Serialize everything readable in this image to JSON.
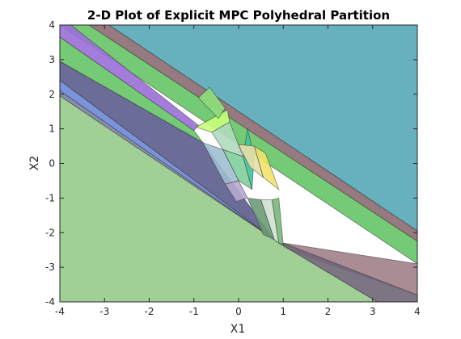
{
  "chart_data": {
    "type": "area",
    "title": "2-D Plot of Explicit MPC Polyhedral Partition",
    "xlabel": "X1",
    "ylabel": "X2",
    "xlim": [
      -4,
      4
    ],
    "ylim": [
      -4,
      4
    ],
    "xticks": [
      -4,
      -3,
      -2,
      -1,
      0,
      1,
      2,
      3,
      4
    ],
    "yticks": [
      -4,
      -3,
      -2,
      -1,
      0,
      1,
      2,
      3,
      4
    ],
    "grid": false,
    "legend": "none",
    "regions": [
      {
        "color": "#56a8b8",
        "vertices": [
          [
            -2.9,
            4
          ],
          [
            4,
            4
          ],
          [
            4,
            -1.95
          ],
          [
            -2.9,
            4
          ]
        ]
      },
      {
        "color": "#8c6a72",
        "vertices": [
          [
            -3.35,
            4
          ],
          [
            -2.9,
            4
          ],
          [
            4,
            -1.95
          ],
          [
            4,
            -2.25
          ]
        ]
      },
      {
        "color": "#66c466",
        "vertices": [
          [
            -4,
            4
          ],
          [
            -3.35,
            4
          ],
          [
            4,
            -2.25
          ],
          [
            4,
            -2.9
          ]
        ]
      },
      {
        "color": "#a07f88",
        "vertices": [
          [
            1,
            -2.3
          ],
          [
            4,
            -2.9
          ],
          [
            4,
            -3.8
          ],
          [
            1,
            -2.45
          ]
        ]
      },
      {
        "color": "#6f6577",
        "vertices": [
          [
            0.9,
            -2.3
          ],
          [
            1,
            -2.3
          ],
          [
            4,
            -3.8
          ],
          [
            4,
            -4
          ],
          [
            3.1,
            -4
          ]
        ]
      },
      {
        "color": "#9a6fd8",
        "vertices": [
          [
            -4,
            4
          ],
          [
            -3.75,
            4
          ],
          [
            -0.9,
            1.1
          ],
          [
            -1,
            0.95
          ],
          [
            -4,
            3.65
          ]
        ]
      },
      {
        "color": "#66c466",
        "vertices": [
          [
            -4,
            3.65
          ],
          [
            -1,
            0.95
          ],
          [
            -0.8,
            0.6
          ],
          [
            -4,
            2.95
          ]
        ]
      },
      {
        "color": "#5c5c8e",
        "vertices": [
          [
            -4,
            2.95
          ],
          [
            -0.8,
            0.6
          ],
          [
            0.8,
            -2.2
          ],
          [
            -4,
            2.4
          ]
        ]
      },
      {
        "color": "#6b88d8",
        "vertices": [
          [
            -4,
            2.4
          ],
          [
            0.8,
            -2.2
          ],
          [
            -4,
            2.1
          ]
        ]
      },
      {
        "color": "#7a82a4",
        "vertices": [
          [
            -4,
            2.1
          ],
          [
            0.8,
            -2.2
          ],
          [
            -4,
            1.95
          ]
        ]
      },
      {
        "color": "#96cb8b",
        "vertices": [
          [
            -4,
            1.95
          ],
          [
            0.8,
            -2.2
          ],
          [
            0.9,
            -2.3
          ],
          [
            3.1,
            -4
          ],
          [
            -4,
            -4
          ]
        ]
      },
      {
        "color": "#c8ff7a",
        "vertices": [
          [
            -0.95,
            1.05
          ],
          [
            -0.25,
            1.55
          ],
          [
            -0.2,
            1.2
          ],
          [
            -0.6,
            0.9
          ]
        ]
      },
      {
        "color": "#8ee07a",
        "vertices": [
          [
            -0.65,
            2.2
          ],
          [
            -0.3,
            1.6
          ],
          [
            -0.45,
            1.3
          ],
          [
            -0.9,
            1.9
          ]
        ]
      },
      {
        "color": "#b0dcbc",
        "vertices": [
          [
            -0.6,
            0.9
          ],
          [
            -0.2,
            1.2
          ],
          [
            0.1,
            0.2
          ],
          [
            -0.35,
            0.4
          ]
        ]
      },
      {
        "color": "#3ec49a",
        "vertices": [
          [
            0.2,
            1.0
          ],
          [
            0.35,
            0.2
          ],
          [
            0.3,
            -0.75
          ],
          [
            0.1,
            0.2
          ]
        ]
      },
      {
        "color": "#7fcf9b",
        "vertices": [
          [
            -0.35,
            0.4
          ],
          [
            0.1,
            0.2
          ],
          [
            0.3,
            -0.75
          ],
          [
            0.0,
            -0.5
          ]
        ]
      },
      {
        "color": "#f2e26a",
        "vertices": [
          [
            0.35,
            0.5
          ],
          [
            0.6,
            0.3
          ],
          [
            0.9,
            -0.75
          ],
          [
            0.55,
            -0.4
          ]
        ]
      },
      {
        "color": "#e8dfa8",
        "vertices": [
          [
            0.0,
            0.55
          ],
          [
            0.35,
            0.5
          ],
          [
            0.55,
            -0.4
          ],
          [
            0.25,
            -0.1
          ]
        ]
      },
      {
        "color": "#6a9a78",
        "vertices": [
          [
            0.2,
            -1.0
          ],
          [
            0.5,
            -1.05
          ],
          [
            0.8,
            -2.2
          ],
          [
            0.55,
            -2.05
          ]
        ]
      },
      {
        "color": "#cfe0cf",
        "vertices": [
          [
            0.5,
            -1.05
          ],
          [
            0.75,
            -1.05
          ],
          [
            0.9,
            -2.3
          ],
          [
            0.8,
            -2.2
          ]
        ]
      },
      {
        "color": "#78b87a",
        "vertices": [
          [
            0.75,
            -1.05
          ],
          [
            0.9,
            -1.0
          ],
          [
            1.0,
            -2.35
          ],
          [
            0.9,
            -2.3
          ]
        ]
      },
      {
        "color": "#9fbfd2",
        "vertices": [
          [
            -0.8,
            0.6
          ],
          [
            -0.35,
            0.4
          ],
          [
            0.0,
            -0.5
          ],
          [
            -0.3,
            -0.6
          ]
        ]
      },
      {
        "color": "#b7a8d0",
        "vertices": [
          [
            -0.3,
            -0.6
          ],
          [
            0.0,
            -0.5
          ],
          [
            0.2,
            -1.0
          ],
          [
            -0.05,
            -1.1
          ]
        ]
      }
    ]
  }
}
